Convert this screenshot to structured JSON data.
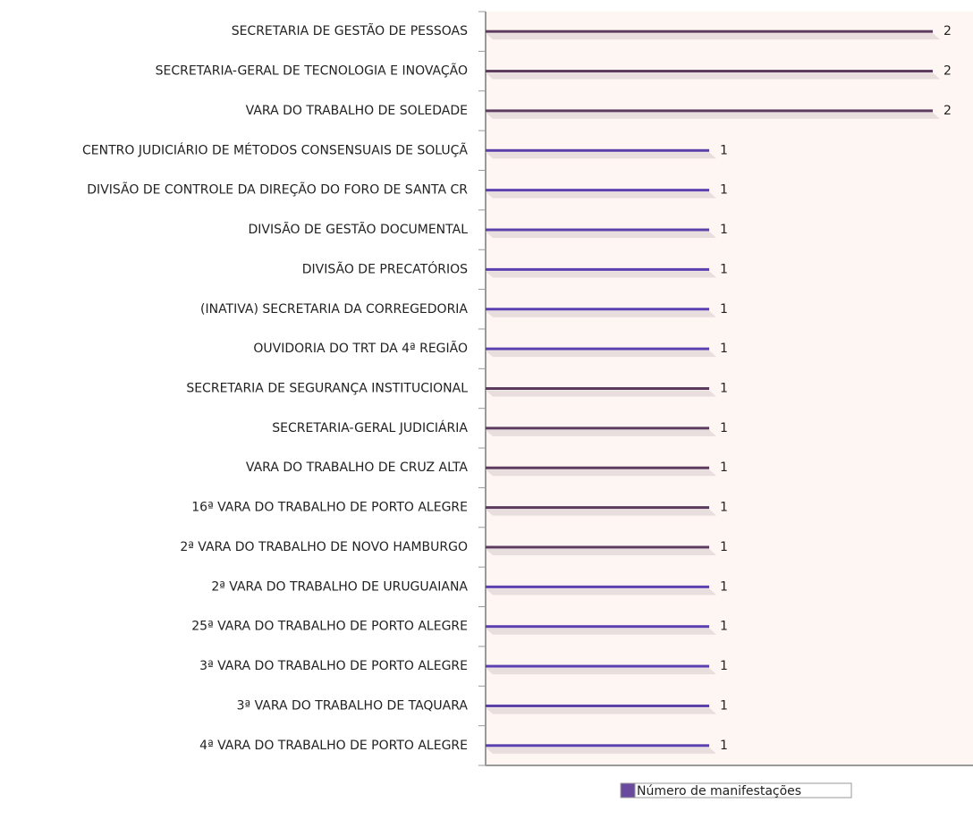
{
  "chart_data": {
    "type": "bar",
    "orientation": "horizontal",
    "categories": [
      "SECRETARIA DE GESTÃO DE PESSOAS",
      "SECRETARIA-GERAL DE TECNOLOGIA E INOVAÇÃO",
      "VARA DO TRABALHO DE SOLEDADE",
      "CENTRO JUDICIÁRIO DE MÉTODOS CONSENSUAIS DE SOLUÇÃ",
      "DIVISÃO DE CONTROLE DA DIREÇÃO DO FORO DE SANTA CR",
      "DIVISÃO DE GESTÃO DOCUMENTAL",
      "DIVISÃO DE PRECATÓRIOS",
      "(INATIVA) SECRETARIA DA CORREGEDORIA",
      "OUVIDORIA DO TRT DA 4ª REGIÃO",
      "SECRETARIA DE SEGURANÇA INSTITUCIONAL",
      "SECRETARIA-GERAL JUDICIÁRIA",
      "VARA DO TRABALHO DE CRUZ ALTA",
      "16ª VARA DO TRABALHO DE PORTO ALEGRE",
      "2ª VARA DO TRABALHO DE NOVO HAMBURGO",
      "2ª VARA DO TRABALHO DE URUGUAIANA",
      "25ª VARA DO TRABALHO DE PORTO ALEGRE",
      "3ª VARA DO TRABALHO DE PORTO ALEGRE",
      "3ª VARA DO TRABALHO DE TAQUARA",
      "4ª VARA DO TRABALHO DE PORTO ALEGRE"
    ],
    "series": [
      {
        "name": "Número de manifestações",
        "color": "#6a4a9c",
        "values": [
          2,
          2,
          2,
          1,
          1,
          1,
          1,
          1,
          1,
          1,
          1,
          1,
          1,
          1,
          1,
          1,
          1,
          1,
          1
        ],
        "colors": [
          "#5c3b5e",
          "#5c3b5e",
          "#5c3b5e",
          "#5b40a8",
          "#5b40b0",
          "#5b40a8",
          "#5b40b0",
          "#5b40b0",
          "#5b40b0",
          "#5c3b5e",
          "#5c3b5e",
          "#5c3b5e",
          "#5c3b5e",
          "#5c3b5e",
          "#5b40b0",
          "#5b40b0",
          "#5b40b0",
          "#5b40a8",
          "#5b40b0"
        ]
      }
    ],
    "xlim": [
      0,
      2.2
    ],
    "legend": "bottom"
  }
}
